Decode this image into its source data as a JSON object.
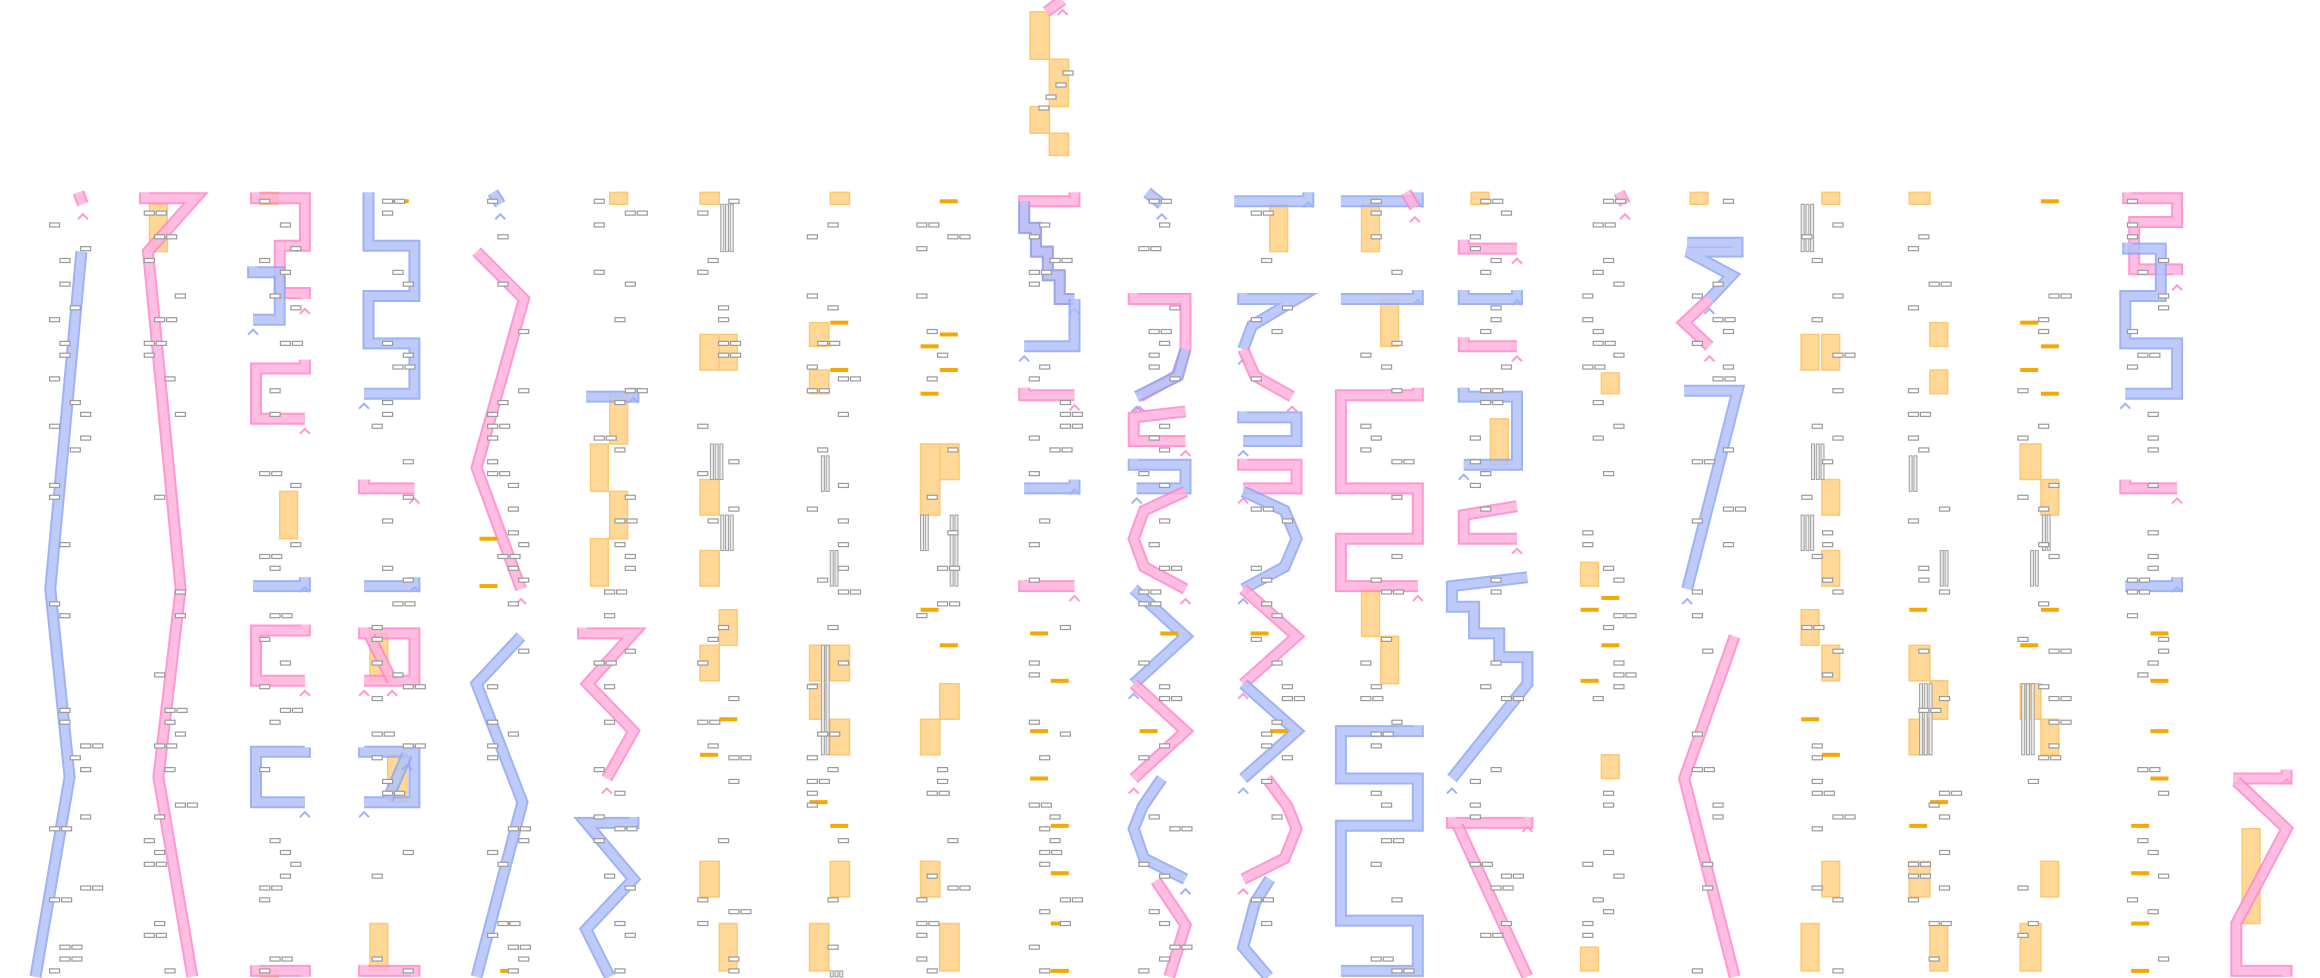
{
  "colors": {
    "background": "#ffffff",
    "blue_track_fill": "#b3c3f8",
    "blue_track_edge": "#8ea6f5",
    "pink_track_fill": "#ffb3dc",
    "pink_track_edge": "#ff85cc",
    "block_fill": "#ffd898",
    "block_edge": "#fcc870",
    "marker_fill": "#f2a900",
    "tick_stroke": "#9a9a9a",
    "bar_stroke": "#a0a0a0"
  },
  "legend": []
}
